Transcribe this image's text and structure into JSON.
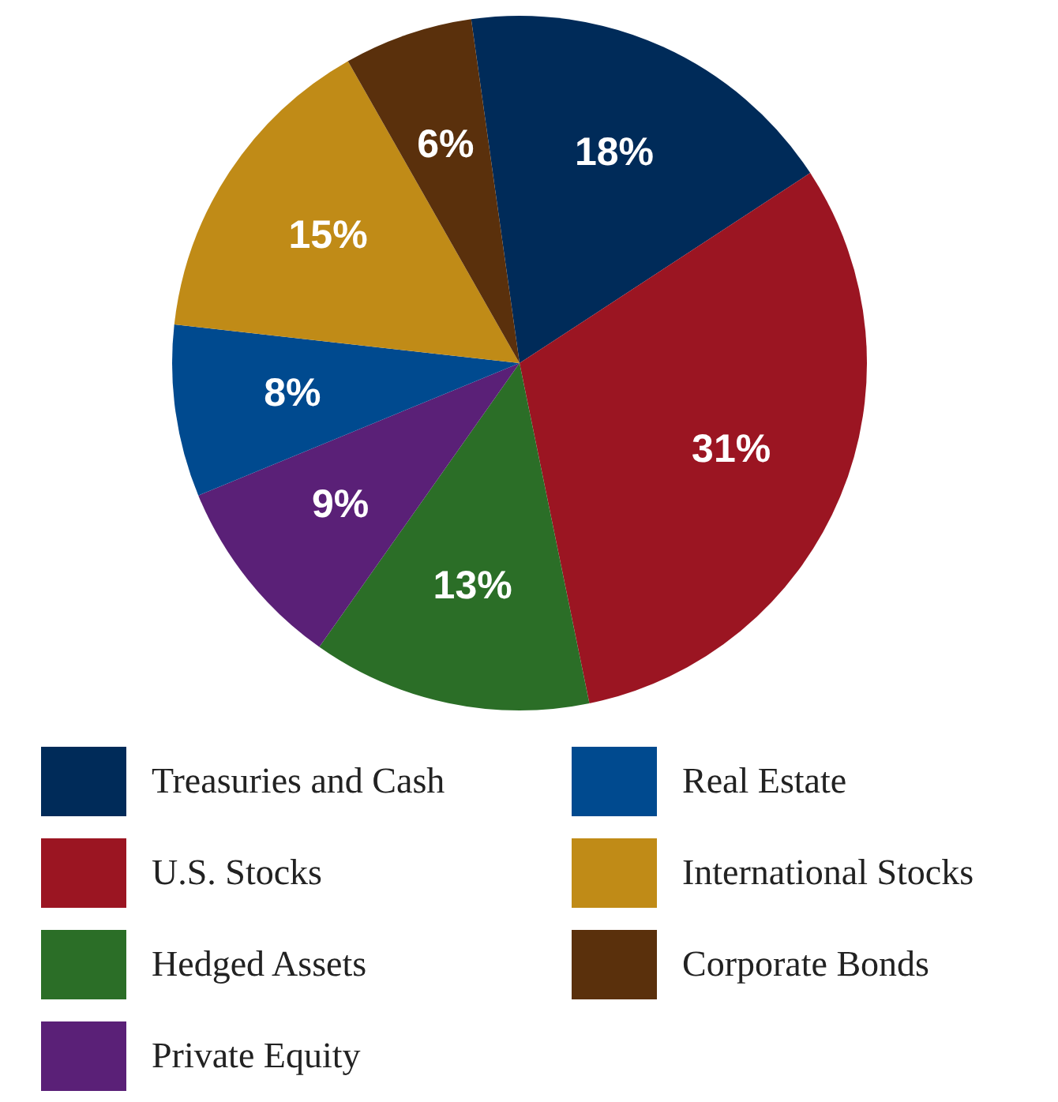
{
  "chart_data": {
    "type": "pie",
    "categories": [
      "Treasuries and Cash",
      "U.S. Stocks",
      "Hedged Assets",
      "Private Equity",
      "Real Estate",
      "International Stocks",
      "Corporate Bonds"
    ],
    "values": [
      18,
      31,
      13,
      9,
      8,
      15,
      6
    ],
    "colors": [
      "#002b59",
      "#9b1522",
      "#2b6e27",
      "#5a2077",
      "#004a8f",
      "#c08b17",
      "#5a300c"
    ],
    "value_labels": [
      "18%",
      "31%",
      "13%",
      "9%",
      "8%",
      "15%",
      "6%"
    ],
    "legend": "bottom"
  }
}
